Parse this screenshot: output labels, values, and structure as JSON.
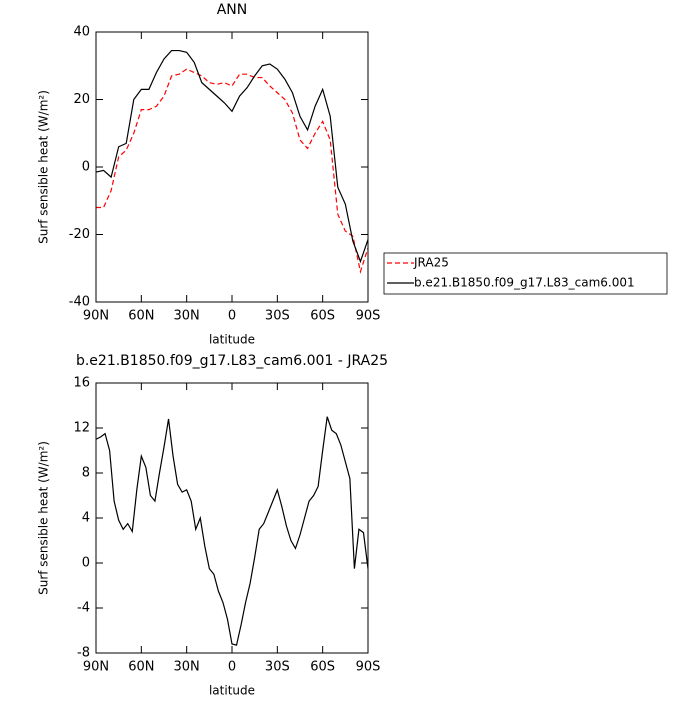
{
  "chart_data": [
    {
      "type": "line",
      "title": "ANN",
      "x_label": "latitude",
      "y_label": "Surf sensible heat (W/m²)",
      "x": [
        90,
        85,
        80,
        75,
        70,
        65,
        60,
        55,
        50,
        45,
        40,
        35,
        30,
        25,
        20,
        15,
        10,
        5,
        0,
        -5,
        -10,
        -15,
        -20,
        -25,
        -30,
        -35,
        -40,
        -45,
        -50,
        -55,
        -60,
        -65,
        -70,
        -75,
        -80,
        -85,
        -90
      ],
      "xlim": [
        90,
        -90
      ],
      "xticks": [
        {
          "value": 90,
          "label": "90N"
        },
        {
          "value": 60,
          "label": "60N"
        },
        {
          "value": 30,
          "label": "30N"
        },
        0,
        {
          "value": -30,
          "label": "30S"
        },
        {
          "value": -60,
          "label": "60S"
        },
        {
          "value": -90,
          "label": "90S"
        }
      ],
      "ylim": [
        -40,
        40
      ],
      "yticks": [
        -40,
        -20,
        0,
        20,
        40
      ],
      "legend": "right",
      "series": [
        {
          "name": "JRA25",
          "color": "#ff0000",
          "style": "dashed",
          "values": [
            -12,
            -12,
            -7,
            3,
            5,
            10,
            17,
            17,
            18,
            21,
            27,
            27.5,
            29,
            28,
            27,
            25,
            24.5,
            25,
            24,
            27.5,
            27.5,
            26.5,
            26.5,
            24,
            22,
            20,
            16,
            8,
            5.5,
            10,
            13.5,
            8,
            -14,
            -19,
            -20.5,
            -31,
            -24
          ]
        },
        {
          "name": "b.e21.B1850.f09_g17.L83_cam6.001",
          "color": "#000000",
          "style": "solid",
          "values": [
            -1.5,
            -1,
            -3,
            6,
            7,
            20,
            23,
            23,
            28,
            32,
            34.5,
            34.5,
            34,
            31,
            25,
            23,
            21,
            19,
            16.5,
            21,
            23.5,
            27,
            30,
            30.5,
            29,
            26,
            22,
            15,
            11,
            18,
            23,
            15,
            -6,
            -11,
            -22,
            -28,
            -21.5
          ]
        }
      ]
    },
    {
      "type": "line",
      "title": "b.e21.B1850.f09_g17.L83_cam6.001 - JRA25",
      "x_label": "latitude",
      "y_label": "Surf sensible heat (W/m²)",
      "x": [
        90,
        87,
        84,
        81,
        78,
        75,
        72,
        69,
        66,
        63,
        60,
        57,
        54,
        51,
        48,
        45,
        42,
        39,
        36,
        33,
        30,
        27,
        24,
        21,
        18,
        15,
        12,
        9,
        6,
        3,
        0,
        -3,
        -6,
        -9,
        -12,
        -15,
        -18,
        -21,
        -24,
        -27,
        -30,
        -33,
        -36,
        -39,
        -42,
        -45,
        -48,
        -51,
        -54,
        -57,
        -60,
        -63,
        -66,
        -69,
        -72,
        -75,
        -78,
        -81,
        -84,
        -87,
        -90
      ],
      "xlim": [
        90,
        -90
      ],
      "xticks": [
        {
          "value": 90,
          "label": "90N"
        },
        {
          "value": 60,
          "label": "60N"
        },
        {
          "value": 30,
          "label": "30N"
        },
        0,
        {
          "value": -30,
          "label": "30S"
        },
        {
          "value": -60,
          "label": "60S"
        },
        {
          "value": -90,
          "label": "90S"
        }
      ],
      "ylim": [
        -8,
        16
      ],
      "yticks": [
        -8,
        -4,
        0,
        4,
        8,
        12,
        16
      ],
      "series": [
        {
          "color": "#000000",
          "style": "solid",
          "values": [
            11,
            11.2,
            11.5,
            10,
            5.5,
            3.8,
            3,
            3.5,
            2.8,
            6.5,
            9.5,
            8.5,
            6,
            5.5,
            8,
            10.3,
            12.8,
            9.5,
            7,
            6.3,
            6.5,
            5.5,
            3,
            4,
            1.5,
            -0.5,
            -1,
            -2.5,
            -3.5,
            -5,
            -7.2,
            -7.3,
            -5.5,
            -3.5,
            -1.8,
            0.5,
            3,
            3.5,
            4.5,
            5.5,
            6.5,
            5,
            3.3,
            2,
            1.3,
            2.5,
            4,
            5.5,
            6,
            6.8,
            10,
            13,
            11.8,
            11.5,
            10.5,
            9,
            7.5,
            -0.5,
            3,
            2.7,
            -0.5
          ]
        }
      ]
    }
  ]
}
